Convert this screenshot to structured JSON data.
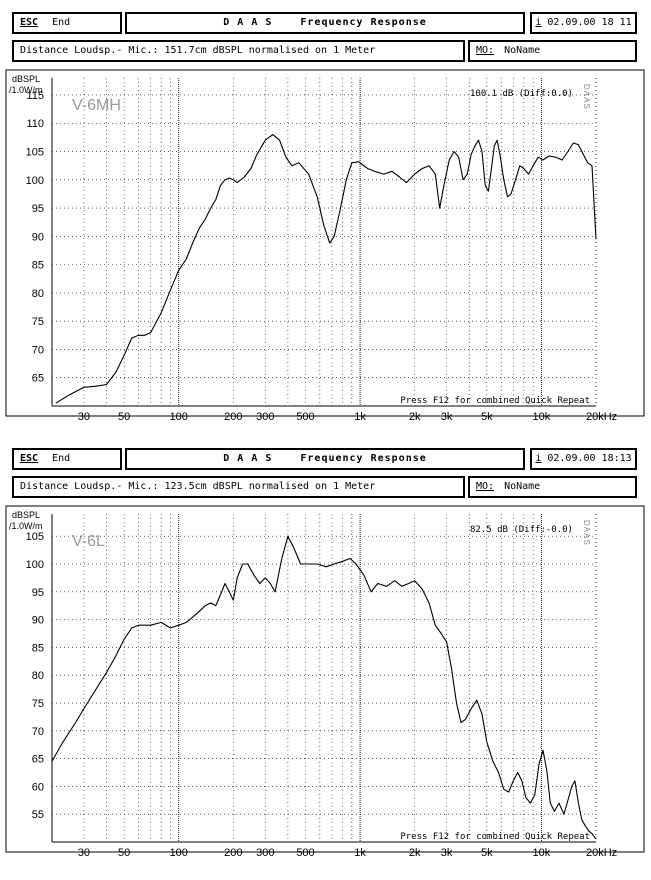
{
  "panels": [
    {
      "header": {
        "esc_label": "ESC",
        "end_label": "End",
        "title_letters": "D A A S",
        "title_rest": "Frequency Response",
        "info_key": "i",
        "datetime": "02.09.00 18 11"
      },
      "subheader": {
        "info": "Distance Loudsp.- Mic.: 151.7cm dBSPL normalised on 1 Meter",
        "mo_key": "MO:",
        "mo_value": "NoName"
      }
    },
    {
      "header": {
        "esc_label": "ESC",
        "end_label": "End",
        "title_letters": "D A A S",
        "title_rest": "Frequency Response",
        "info_key": "i",
        "datetime": "02.09.00 18:13"
      },
      "subheader": {
        "info": "Distance Loudsp.- Mic.: 123.5cm dBSPL normalised on 1 Meter",
        "mo_key": "MO:",
        "mo_value": "NoName"
      }
    }
  ],
  "chart_data": [
    {
      "type": "line",
      "series_label": "V-6MH",
      "ylabel": "dBSPL /1.0W/m",
      "reading": "100.1 dB (Diff:0.0)",
      "side_label": "DAAS",
      "footer_note": "Press F12 for combined Quick Repeat",
      "x_scale": "log",
      "xlim": [
        20,
        20000
      ],
      "ylim": [
        60,
        118
      ],
      "y_ticks": [
        65,
        70,
        75,
        80,
        85,
        90,
        95,
        100,
        105,
        110,
        115
      ],
      "x_tick_labels": [
        "30",
        "50",
        "100",
        "200",
        "300",
        "500",
        "1k",
        "2k",
        "3k",
        "5k",
        "10k",
        "20kHz"
      ],
      "x_tick_values": [
        30,
        50,
        100,
        200,
        300,
        500,
        1000,
        2000,
        3000,
        5000,
        10000,
        20000
      ],
      "grid": true,
      "points": [
        [
          21,
          60.5
        ],
        [
          25,
          62
        ],
        [
          30,
          63.3
        ],
        [
          35,
          63.5
        ],
        [
          40,
          63.8
        ],
        [
          45,
          66
        ],
        [
          50,
          69
        ],
        [
          55,
          72
        ],
        [
          60,
          72.5
        ],
        [
          65,
          72.5
        ],
        [
          70,
          73
        ],
        [
          80,
          76.5
        ],
        [
          90,
          80.5
        ],
        [
          100,
          84
        ],
        [
          110,
          86
        ],
        [
          120,
          89
        ],
        [
          130,
          91.5
        ],
        [
          140,
          93
        ],
        [
          150,
          95
        ],
        [
          160,
          96.5
        ],
        [
          170,
          99
        ],
        [
          180,
          100
        ],
        [
          190,
          100.3
        ],
        [
          200,
          100
        ],
        [
          210,
          99.5
        ],
        [
          230,
          100.5
        ],
        [
          250,
          102
        ],
        [
          270,
          104.5
        ],
        [
          300,
          107
        ],
        [
          330,
          108
        ],
        [
          360,
          107
        ],
        [
          390,
          104
        ],
        [
          420,
          102.5
        ],
        [
          460,
          103
        ],
        [
          520,
          101
        ],
        [
          580,
          97
        ],
        [
          630,
          92
        ],
        [
          680,
          88.8
        ],
        [
          720,
          90
        ],
        [
          780,
          95
        ],
        [
          840,
          100
        ],
        [
          900,
          103
        ],
        [
          980,
          103.2
        ],
        [
          1100,
          102
        ],
        [
          1200,
          101.5
        ],
        [
          1350,
          101
        ],
        [
          1500,
          101.5
        ],
        [
          1650,
          100.5
        ],
        [
          1800,
          99.5
        ],
        [
          2000,
          101
        ],
        [
          2200,
          102
        ],
        [
          2400,
          102.5
        ],
        [
          2600,
          101
        ],
        [
          2750,
          95
        ],
        [
          2900,
          99
        ],
        [
          3100,
          103.5
        ],
        [
          3300,
          105
        ],
        [
          3500,
          104
        ],
        [
          3700,
          100
        ],
        [
          3900,
          101
        ],
        [
          4100,
          104.5
        ],
        [
          4300,
          106
        ],
        [
          4500,
          107
        ],
        [
          4700,
          105
        ],
        [
          4900,
          99
        ],
        [
          5100,
          98
        ],
        [
          5300,
          102
        ],
        [
          5500,
          106
        ],
        [
          5700,
          107
        ],
        [
          5900,
          104.5
        ],
        [
          6200,
          100
        ],
        [
          6500,
          97
        ],
        [
          6800,
          97.5
        ],
        [
          7200,
          100
        ],
        [
          7600,
          102.5
        ],
        [
          8000,
          102
        ],
        [
          8500,
          101
        ],
        [
          9000,
          102.5
        ],
        [
          9600,
          104
        ],
        [
          10200,
          103.5
        ],
        [
          11000,
          104.2
        ],
        [
          12000,
          104
        ],
        [
          13000,
          103.5
        ],
        [
          14000,
          105
        ],
        [
          15000,
          106.5
        ],
        [
          16000,
          106.2
        ],
        [
          17000,
          104.5
        ],
        [
          18000,
          103
        ],
        [
          19000,
          102.5
        ],
        [
          20000,
          89.5
        ]
      ]
    },
    {
      "type": "line",
      "series_label": "V-6L",
      "ylabel": "dBSPL /1.0W/m",
      "reading": "82.5 dB (Diff:-0.0)",
      "side_label": "DAAS",
      "footer_note": "Press F12 for combined Quick Repeat",
      "x_scale": "log",
      "xlim": [
        20,
        20000
      ],
      "ylim": [
        50,
        109
      ],
      "y_ticks": [
        55,
        60,
        65,
        70,
        75,
        80,
        85,
        90,
        95,
        100,
        105
      ],
      "x_tick_labels": [
        "30",
        "50",
        "100",
        "200",
        "300",
        "500",
        "1k",
        "2k",
        "3k",
        "5k",
        "10k",
        "20kHz"
      ],
      "x_tick_values": [
        30,
        50,
        100,
        200,
        300,
        500,
        1000,
        2000,
        3000,
        5000,
        10000,
        20000
      ],
      "grid": true,
      "points": [
        [
          20,
          64.5
        ],
        [
          23,
          68
        ],
        [
          27,
          71.5
        ],
        [
          30,
          74
        ],
        [
          35,
          77.5
        ],
        [
          40,
          80.5
        ],
        [
          45,
          83.5
        ],
        [
          50,
          86.5
        ],
        [
          55,
          88.5
        ],
        [
          60,
          89
        ],
        [
          70,
          89
        ],
        [
          80,
          89.5
        ],
        [
          90,
          88.5
        ],
        [
          100,
          89
        ],
        [
          110,
          89.5
        ],
        [
          120,
          90.5
        ],
        [
          130,
          91.5
        ],
        [
          140,
          92.5
        ],
        [
          150,
          93
        ],
        [
          160,
          92.5
        ],
        [
          170,
          94.5
        ],
        [
          180,
          96.5
        ],
        [
          190,
          95
        ],
        [
          200,
          93.5
        ],
        [
          210,
          97.5
        ],
        [
          225,
          100
        ],
        [
          240,
          100
        ],
        [
          260,
          98
        ],
        [
          280,
          96.5
        ],
        [
          300,
          97.5
        ],
        [
          320,
          96.5
        ],
        [
          340,
          95
        ],
        [
          370,
          101
        ],
        [
          400,
          105
        ],
        [
          430,
          103
        ],
        [
          470,
          100
        ],
        [
          520,
          100
        ],
        [
          580,
          100
        ],
        [
          650,
          99.5
        ],
        [
          720,
          100
        ],
        [
          800,
          100.5
        ],
        [
          880,
          101
        ],
        [
          950,
          100
        ],
        [
          1050,
          98
        ],
        [
          1150,
          95
        ],
        [
          1250,
          96.5
        ],
        [
          1400,
          96
        ],
        [
          1550,
          97
        ],
        [
          1700,
          96
        ],
        [
          1850,
          96.5
        ],
        [
          2000,
          97
        ],
        [
          2200,
          95.5
        ],
        [
          2400,
          93
        ],
        [
          2600,
          89
        ],
        [
          2800,
          87.5
        ],
        [
          3000,
          86
        ],
        [
          3200,
          81
        ],
        [
          3400,
          75
        ],
        [
          3600,
          71.5
        ],
        [
          3800,
          72
        ],
        [
          4100,
          74
        ],
        [
          4400,
          75.5
        ],
        [
          4700,
          73
        ],
        [
          5000,
          68
        ],
        [
          5400,
          64.5
        ],
        [
          5800,
          62.5
        ],
        [
          6200,
          59.5
        ],
        [
          6600,
          59
        ],
        [
          7000,
          61
        ],
        [
          7400,
          62.5
        ],
        [
          7800,
          61
        ],
        [
          8200,
          58
        ],
        [
          8700,
          57
        ],
        [
          9200,
          58.5
        ],
        [
          9700,
          64
        ],
        [
          10200,
          66.5
        ],
        [
          10700,
          63
        ],
        [
          11200,
          57
        ],
        [
          11800,
          55.5
        ],
        [
          12500,
          57
        ],
        [
          13300,
          55
        ],
        [
          14000,
          57.5
        ],
        [
          14700,
          60
        ],
        [
          15300,
          61
        ],
        [
          16000,
          57
        ],
        [
          16700,
          54
        ],
        [
          17400,
          53
        ],
        [
          18200,
          52
        ],
        [
          19000,
          51.5
        ],
        [
          20000,
          50.5
        ]
      ]
    }
  ]
}
